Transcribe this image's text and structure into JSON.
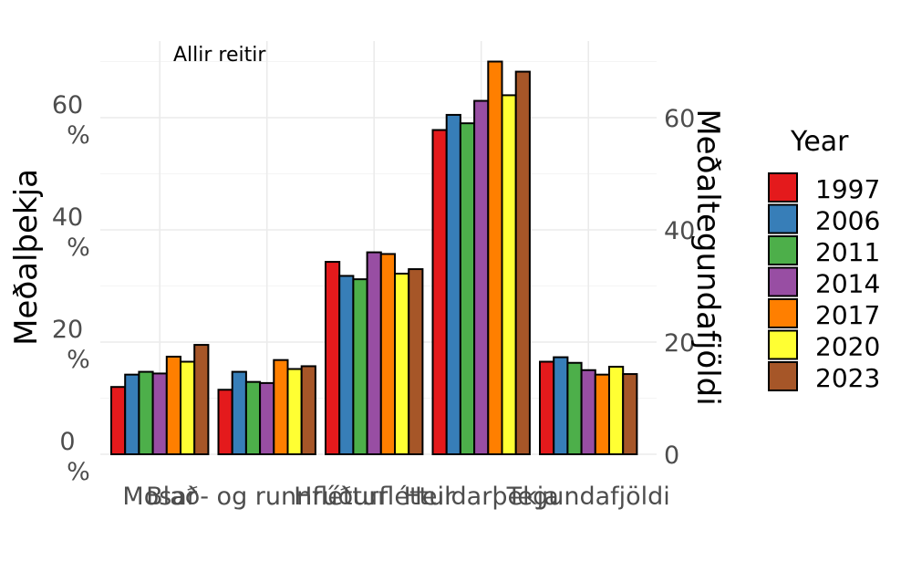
{
  "chart_data": {
    "type": "bar",
    "annotation": "Allir reitir",
    "categories": [
      "Mosar",
      "Blað- og runnfléttur",
      "Hrúðurfléttur",
      "Heildarþekja",
      "Tegundafjöldi"
    ],
    "ylabel_left": "Meðalþekja",
    "ylabel_right": "Meðaltegundafjöldi",
    "left_ticks": [
      {
        "value": 0,
        "line1": "0",
        "line2": "%"
      },
      {
        "value": 20,
        "line1": "20",
        "line2": "%"
      },
      {
        "value": 40,
        "line1": "40",
        "line2": "%"
      },
      {
        "value": 60,
        "line1": "60",
        "line2": "%"
      }
    ],
    "right_ticks": [
      "0",
      "20",
      "40",
      "60"
    ],
    "ylim": [
      0,
      70
    ],
    "grid": true,
    "legend": {
      "title": "Year",
      "placement": "right"
    },
    "series": [
      {
        "name": "1997",
        "color": "#E41A1C",
        "values": [
          12,
          11.5,
          34.3,
          57.8,
          16.5
        ]
      },
      {
        "name": "2006",
        "color": "#377EB8",
        "values": [
          14.2,
          14.7,
          31.8,
          60.5,
          17.3
        ]
      },
      {
        "name": "2011",
        "color": "#4DAF4A",
        "values": [
          14.7,
          12.9,
          31.2,
          59,
          16.3
        ]
      },
      {
        "name": "2014",
        "color": "#984EA3",
        "values": [
          14.4,
          12.7,
          36,
          63,
          15
        ]
      },
      {
        "name": "2017",
        "color": "#FF7F00",
        "values": [
          17.4,
          16.8,
          35.7,
          70,
          14.2
        ]
      },
      {
        "name": "2020",
        "color": "#FFFF33",
        "values": [
          16.5,
          15.2,
          32.2,
          64,
          15.6
        ]
      },
      {
        "name": "2023",
        "color": "#A65628",
        "values": [
          19.5,
          15.7,
          33,
          68.2,
          14.3
        ]
      }
    ]
  }
}
